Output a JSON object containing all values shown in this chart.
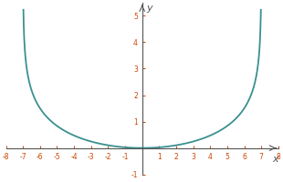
{
  "func": "neg_ln_cos_pi_x_14",
  "x_min": -8,
  "x_max": 8,
  "y_min": -1,
  "y_max": 5.5,
  "x_ticks": [
    -8,
    -7,
    -6,
    -5,
    -4,
    -3,
    -2,
    -1,
    1,
    2,
    3,
    4,
    5,
    6,
    7,
    8
  ],
  "y_ticks": [
    -1,
    1,
    2,
    3,
    4,
    5
  ],
  "line_color": "#3a9090",
  "line_width": 1.3,
  "xlabel": "x",
  "ylabel": "y",
  "background_color": "#ffffff",
  "axis_color": "#555555",
  "tick_color": "#cc4400",
  "figsize": [
    3.1,
    2.0
  ],
  "dpi": 100,
  "clip_y_max": 5.3,
  "asymptote": 7.0
}
